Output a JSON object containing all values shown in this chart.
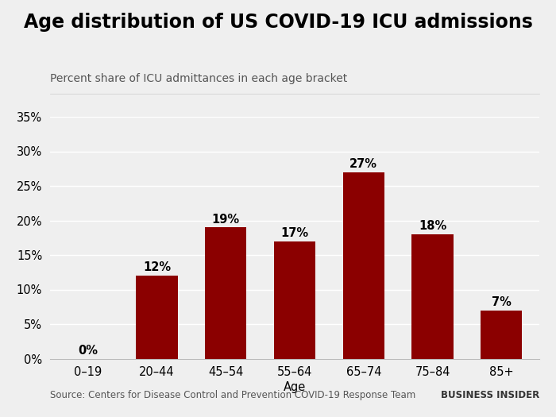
{
  "title": "Age distribution of US COVID-19 ICU admissions",
  "subtitle": "Percent share of ICU admittances in each age bracket",
  "xlabel": "Age",
  "categories": [
    "0–19",
    "20–44",
    "45–54",
    "55–64",
    "65–74",
    "75–84",
    "85+"
  ],
  "values": [
    0,
    12,
    19,
    17,
    27,
    18,
    7
  ],
  "bar_color": "#8b0000",
  "background_color": "#efefef",
  "ylim": [
    0,
    35
  ],
  "yticks": [
    0,
    5,
    10,
    15,
    20,
    25,
    30,
    35
  ],
  "source_text": "Source: Centers for Disease Control and Prevention COVID-19 Response Team",
  "brand_text": "BUSINESS INSIDER",
  "title_fontsize": 17,
  "subtitle_fontsize": 10,
  "label_fontsize": 10.5,
  "tick_fontsize": 10.5,
  "source_fontsize": 8.5,
  "brand_fontsize": 8.5
}
